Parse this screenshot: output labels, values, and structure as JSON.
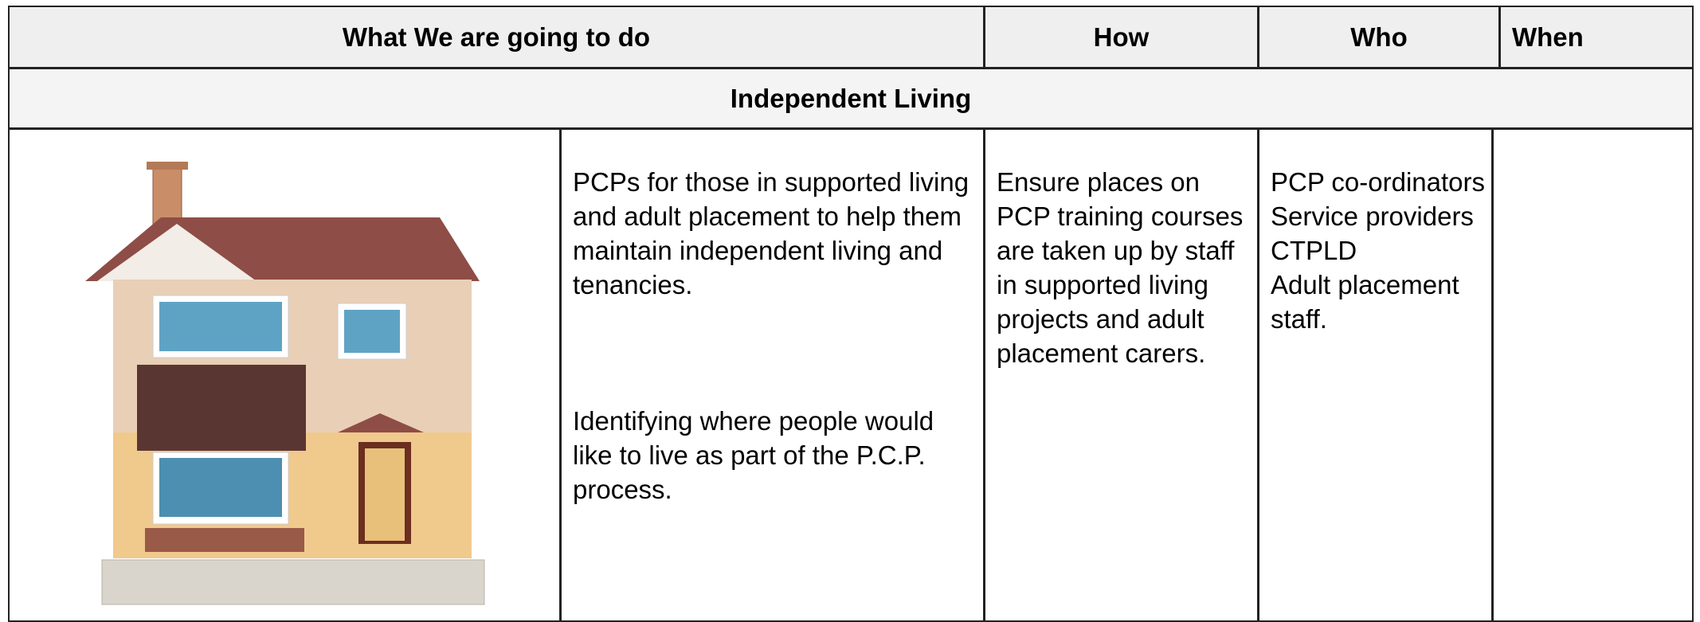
{
  "table": {
    "headers": [
      "What We are going to do",
      "How",
      "Who",
      "When"
    ],
    "section": "Independent Living",
    "row": {
      "what": [
        "PCPs for those in supported living and adult placement to help them maintain independent living and tenancies.",
        "Identifying where people would like to live as part of the P.C.P. process."
      ],
      "how": "Ensure places on PCP training courses are taken up by staff in supported living projects and adult placement carers.",
      "who": [
        "PCP co-ordinators",
        "Service providers",
        "CTPLD",
        "Adult placement staff."
      ]
    }
  }
}
